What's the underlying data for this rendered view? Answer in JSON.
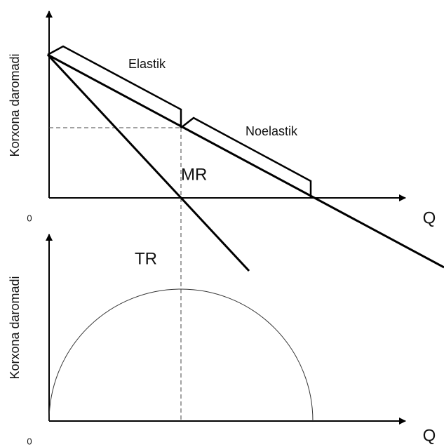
{
  "top_panel": {
    "y_label": "Korxona daromadi",
    "origin": "0",
    "x_label": "Q",
    "elastic_label": "Elastik",
    "inelastic_label": "Noelastik",
    "mr_label": "MR"
  },
  "bottom_panel": {
    "y_label": "Korxona daromadi",
    "origin": "0",
    "x_label": "Q",
    "tr_label": "TR"
  }
}
